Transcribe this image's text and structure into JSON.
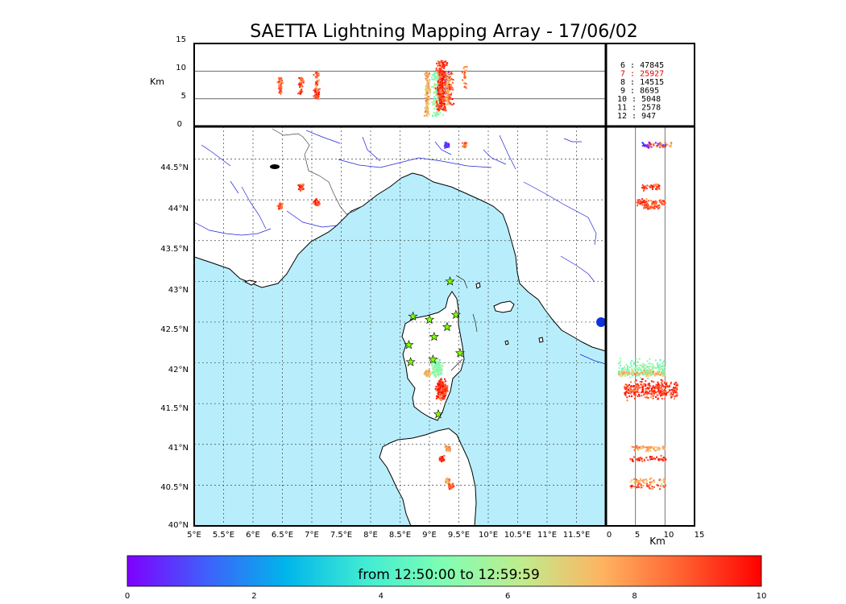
{
  "title": "SAETTA Lightning Mapping Array - 17/06/02",
  "top_panel": {
    "ylabel": "Km",
    "yticks": [
      "15",
      "10",
      "5",
      "0"
    ]
  },
  "right_panel": {
    "xlabel": "Km",
    "xticks": [
      "0",
      "5",
      "10",
      "15"
    ]
  },
  "map": {
    "lon_ticks": [
      "5°E",
      "5.5°E",
      "6°E",
      "6.5°E",
      "7°E",
      "7.5°E",
      "8°E",
      "8.5°E",
      "9°E",
      "9.5°E",
      "10°E",
      "10.5°E",
      "11°E",
      "11.5°E"
    ],
    "lat_ticks": [
      "44.5°N",
      "44°N",
      "43.5°N",
      "43°N",
      "42.5°N",
      "42°N",
      "41.5°N",
      "41°N",
      "40.5°N",
      "40°N"
    ],
    "lon_range": [
      5,
      12
    ],
    "lat_range": [
      40,
      44.9
    ],
    "sea_color": "#b8eefc",
    "land_color": "#ffffff",
    "river_color": "#2020dd",
    "station_color": "#7fff00",
    "stations": [
      {
        "lon": 9.35,
        "lat": 43.0
      },
      {
        "lon": 8.72,
        "lat": 42.57
      },
      {
        "lon": 9.0,
        "lat": 42.53
      },
      {
        "lon": 9.45,
        "lat": 42.59
      },
      {
        "lon": 9.3,
        "lat": 42.44
      },
      {
        "lon": 9.08,
        "lat": 42.32
      },
      {
        "lon": 8.65,
        "lat": 42.22
      },
      {
        "lon": 8.68,
        "lat": 42.01
      },
      {
        "lon": 9.06,
        "lat": 42.04
      },
      {
        "lon": 9.52,
        "lat": 42.12
      },
      {
        "lon": 9.15,
        "lat": 41.37
      }
    ]
  },
  "counts": [
    {
      "label": "6 :    47845",
      "color": "#000000"
    },
    {
      "label": "7 :    25927",
      "color": "#e00000"
    },
    {
      "label": "8 :    14515",
      "color": "#000000"
    },
    {
      "label": "9 :     8695",
      "color": "#000000"
    },
    {
      "label": "10 :     5048",
      "color": "#000000"
    },
    {
      "label": "11 :     2578",
      "color": "#000000"
    },
    {
      "label": "12 :      947",
      "color": "#000000"
    }
  ],
  "colorbar": {
    "text": "from 12:50:00 to 12:59:59",
    "ticks": [
      "0",
      "2",
      "4",
      "6",
      "8",
      "10"
    ],
    "range": [
      0,
      10
    ],
    "stops": [
      "#7f00ff",
      "#3f60fb",
      "#00b5eb",
      "#40ecd3",
      "#80feb3",
      "#c1eb8c",
      "#ffb360",
      "#ff6030",
      "#ff0000"
    ]
  },
  "chart_data": {
    "type": "scatter",
    "title": "SAETTA Lightning Mapping Array - 17/06/02",
    "xlabel": "",
    "ylabel": "",
    "xlim": [
      5,
      12
    ],
    "ylim": [
      40,
      44.9
    ],
    "altitude_range_km": [
      0,
      15
    ],
    "color_scale": "minutes (0-10)",
    "clusters": [
      {
        "lon": 6.45,
        "lat": 43.93,
        "alt_km": [
          6,
          9
        ],
        "minute": 8.8,
        "sources": 60
      },
      {
        "lon": 6.8,
        "lat": 44.17,
        "alt_km": [
          6,
          9
        ],
        "minute": 9.0,
        "sources": 50
      },
      {
        "lon": 7.07,
        "lat": 43.98,
        "alt_km": [
          5,
          10
        ],
        "minute": 8.9,
        "sources": 80
      },
      {
        "lon": 9.28,
        "lat": 44.68,
        "alt_km": [
          6,
          10
        ],
        "minute": 0.5,
        "sources": 40
      },
      {
        "lon": 9.58,
        "lat": 44.68,
        "alt_km": [
          7,
          11
        ],
        "minute": 8.2,
        "sources": 30
      },
      {
        "lon": 8.95,
        "lat": 41.88,
        "alt_km": [
          2,
          10
        ],
        "minute": 7.5,
        "sources": 150
      },
      {
        "lon": 9.12,
        "lat": 41.95,
        "alt_km": [
          2,
          10
        ],
        "minute": 5.3,
        "sources": 160
      },
      {
        "lon": 9.2,
        "lat": 41.68,
        "alt_km": [
          3,
          12
        ],
        "minute": 9.2,
        "sources": 300
      },
      {
        "lon": 9.3,
        "lat": 40.96,
        "alt_km": [
          4,
          10
        ],
        "minute": 7.8,
        "sources": 60
      },
      {
        "lon": 9.2,
        "lat": 40.83,
        "alt_km": [
          4,
          10
        ],
        "minute": 9.4,
        "sources": 50
      },
      {
        "lon": 9.3,
        "lat": 40.56,
        "alt_km": [
          4,
          10
        ],
        "minute": 7.6,
        "sources": 50
      },
      {
        "lon": 9.35,
        "lat": 40.5,
        "alt_km": [
          4,
          10
        ],
        "minute": 9.0,
        "sources": 40
      }
    ]
  }
}
